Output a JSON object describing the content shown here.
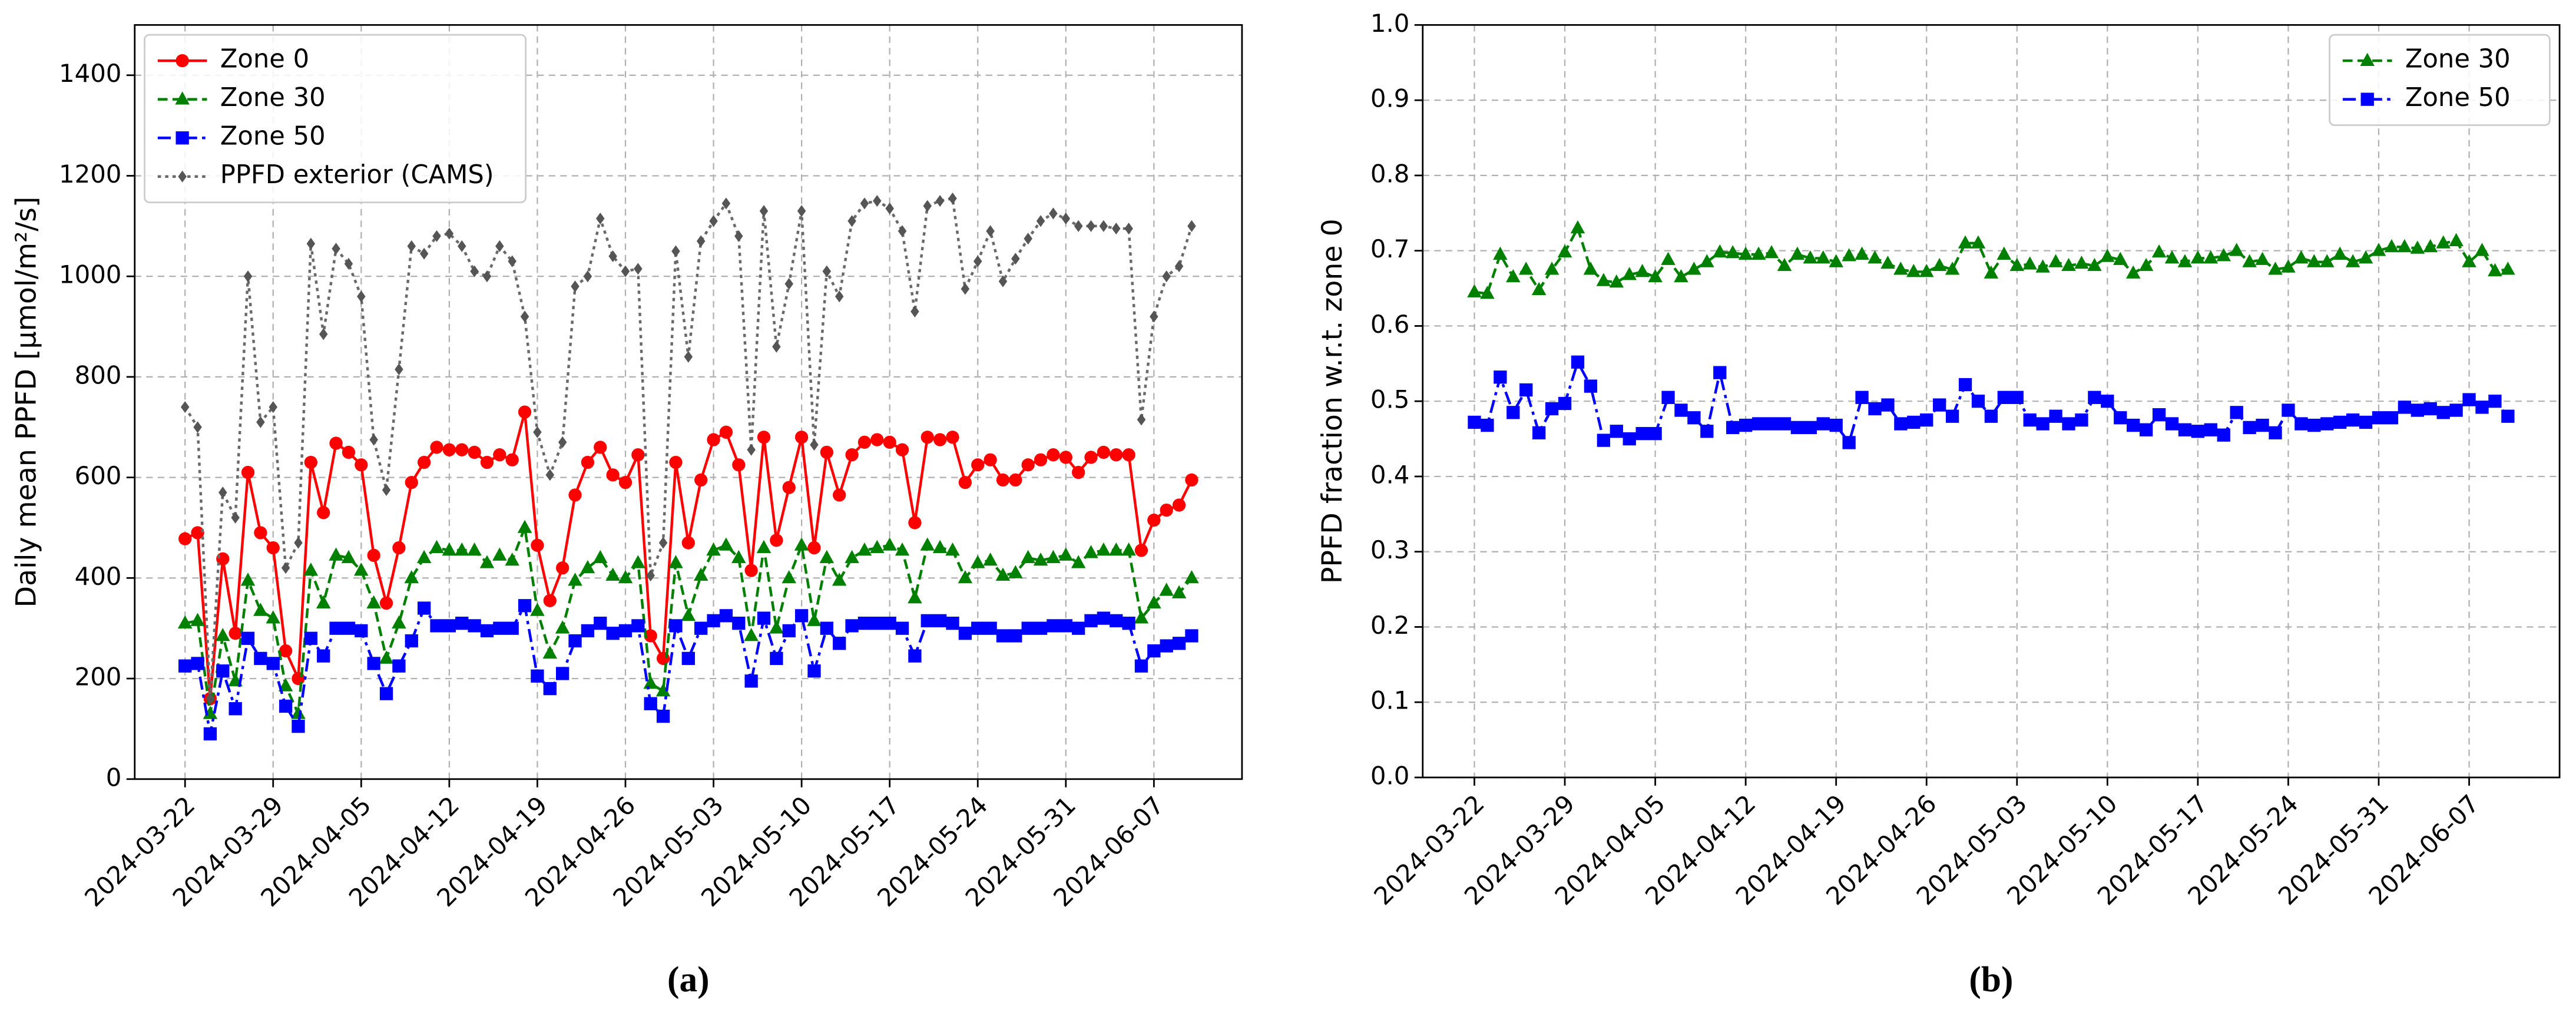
{
  "chart_data": [
    {
      "type": "line",
      "caption": "(a)",
      "ylabel": "Daily mean PPFD [μmol/m²/s]",
      "ylim": [
        0,
        1500
      ],
      "yticks": [
        0,
        200,
        400,
        600,
        800,
        1000,
        1200,
        1400
      ],
      "xticks": [
        "2024-03-22",
        "2024-03-29",
        "2024-04-05",
        "2024-04-12",
        "2024-04-19",
        "2024-04-26",
        "2024-05-03",
        "2024-05-10",
        "2024-05-17",
        "2024-05-24",
        "2024-05-31",
        "2024-06-07"
      ],
      "grid": true,
      "legend": "upper left",
      "x": [
        "2024-03-22",
        "2024-03-23",
        "2024-03-24",
        "2024-03-25",
        "2024-03-26",
        "2024-03-27",
        "2024-03-28",
        "2024-03-29",
        "2024-03-30",
        "2024-03-31",
        "2024-04-01",
        "2024-04-02",
        "2024-04-03",
        "2024-04-04",
        "2024-04-05",
        "2024-04-06",
        "2024-04-07",
        "2024-04-08",
        "2024-04-09",
        "2024-04-10",
        "2024-04-11",
        "2024-04-12",
        "2024-04-13",
        "2024-04-14",
        "2024-04-15",
        "2024-04-16",
        "2024-04-17",
        "2024-04-18",
        "2024-04-19",
        "2024-04-20",
        "2024-04-21",
        "2024-04-22",
        "2024-04-23",
        "2024-04-24",
        "2024-04-25",
        "2024-04-26",
        "2024-04-27",
        "2024-04-28",
        "2024-04-29",
        "2024-04-30",
        "2024-05-01",
        "2024-05-02",
        "2024-05-03",
        "2024-05-04",
        "2024-05-05",
        "2024-05-06",
        "2024-05-07",
        "2024-05-08",
        "2024-05-09",
        "2024-05-10",
        "2024-05-11",
        "2024-05-12",
        "2024-05-13",
        "2024-05-14",
        "2024-05-15",
        "2024-05-16",
        "2024-05-17",
        "2024-05-18",
        "2024-05-19",
        "2024-05-20",
        "2024-05-21",
        "2024-05-22",
        "2024-05-23",
        "2024-05-24",
        "2024-05-25",
        "2024-05-26",
        "2024-05-27",
        "2024-05-28",
        "2024-05-29",
        "2024-05-30",
        "2024-05-31",
        "2024-06-01",
        "2024-06-02",
        "2024-06-03",
        "2024-06-04",
        "2024-06-05",
        "2024-06-06",
        "2024-06-07",
        "2024-06-08",
        "2024-06-09",
        "2024-06-10"
      ],
      "series": [
        {
          "name": "Zone 0",
          "color": "#ff0000",
          "linestyle": "solid",
          "marker": "circle",
          "values": [
            478,
            490,
            160,
            438,
            290,
            610,
            490,
            460,
            255,
            200,
            630,
            530,
            668,
            650,
            625,
            445,
            350,
            460,
            590,
            630,
            660,
            655,
            655,
            650,
            630,
            645,
            635,
            730,
            465,
            355,
            420,
            565,
            630,
            660,
            605,
            590,
            645,
            285,
            240,
            630,
            470,
            595,
            675,
            690,
            625,
            415,
            680,
            475,
            580,
            680,
            460,
            650,
            565,
            645,
            670,
            675,
            670,
            655,
            510,
            680,
            675,
            680,
            590,
            625,
            635,
            595,
            595,
            625,
            635,
            645,
            640,
            610,
            640,
            650,
            645,
            645,
            455,
            515,
            535,
            545,
            595
          ]
        },
        {
          "name": "Zone 30",
          "color": "#008000",
          "linestyle": "dashed",
          "marker": "triangle",
          "values": [
            310,
            315,
            130,
            285,
            195,
            395,
            335,
            320,
            185,
            130,
            415,
            350,
            445,
            440,
            415,
            350,
            240,
            310,
            400,
            440,
            460,
            455,
            455,
            455,
            430,
            445,
            435,
            500,
            335,
            250,
            300,
            395,
            420,
            440,
            405,
            400,
            430,
            190,
            175,
            430,
            325,
            405,
            455,
            465,
            440,
            285,
            460,
            300,
            400,
            465,
            315,
            440,
            395,
            440,
            455,
            460,
            465,
            455,
            360,
            465,
            460,
            455,
            400,
            430,
            435,
            405,
            410,
            440,
            435,
            440,
            445,
            430,
            450,
            455,
            455,
            455,
            320,
            350,
            375,
            370,
            400
          ]
        },
        {
          "name": "Zone 50",
          "color": "#0000ff",
          "linestyle": "dashdot",
          "marker": "square",
          "values": [
            225,
            230,
            90,
            215,
            140,
            280,
            240,
            230,
            145,
            105,
            280,
            245,
            300,
            300,
            295,
            230,
            170,
            225,
            275,
            340,
            305,
            305,
            310,
            305,
            295,
            300,
            300,
            345,
            205,
            180,
            210,
            275,
            295,
            310,
            290,
            295,
            305,
            150,
            125,
            305,
            240,
            300,
            315,
            325,
            310,
            195,
            320,
            240,
            295,
            325,
            215,
            300,
            270,
            305,
            310,
            310,
            310,
            300,
            245,
            315,
            315,
            310,
            290,
            300,
            300,
            285,
            285,
            300,
            300,
            305,
            305,
            300,
            315,
            320,
            315,
            310,
            225,
            255,
            265,
            270,
            285
          ]
        },
        {
          "name": "PPFD exterior (CAMS)",
          "color": "#696969",
          "linestyle": "dotted",
          "marker": "diamond",
          "values": [
            740,
            700,
            160,
            570,
            520,
            1000,
            710,
            740,
            420,
            470,
            1065,
            885,
            1055,
            1025,
            960,
            675,
            575,
            815,
            1060,
            1045,
            1080,
            1085,
            1060,
            1010,
            1000,
            1060,
            1030,
            920,
            690,
            605,
            670,
            980,
            1000,
            1115,
            1040,
            1010,
            1015,
            405,
            470,
            1050,
            840,
            1070,
            1110,
            1145,
            1080,
            655,
            1130,
            860,
            985,
            1130,
            665,
            1010,
            960,
            1110,
            1145,
            1150,
            1135,
            1090,
            930,
            1140,
            1150,
            1155,
            975,
            1030,
            1090,
            990,
            1035,
            1075,
            1110,
            1125,
            1115,
            1100,
            1100,
            1100,
            1095,
            1095,
            715,
            920,
            1000,
            1020,
            1100
          ]
        }
      ]
    },
    {
      "type": "line",
      "caption": "(b)",
      "ylabel": "PPFD fraction w.r.t. zone 0",
      "ylim": [
        0,
        1
      ],
      "yticks": [
        {
          "value": 0,
          "label": "0.0"
        },
        0.1,
        0.2,
        0.3,
        0.4,
        0.5,
        0.6,
        0.7,
        0.8,
        0.9,
        {
          "value": 1,
          "label": "1.0"
        }
      ],
      "xticks": [
        "2024-03-22",
        "2024-03-29",
        "2024-04-05",
        "2024-04-12",
        "2024-04-19",
        "2024-04-26",
        "2024-05-03",
        "2024-05-10",
        "2024-05-17",
        "2024-05-24",
        "2024-05-31",
        "2024-06-07"
      ],
      "grid": true,
      "legend": "upper right",
      "x": [
        "2024-03-22",
        "2024-03-23",
        "2024-03-24",
        "2024-03-25",
        "2024-03-26",
        "2024-03-27",
        "2024-03-28",
        "2024-03-29",
        "2024-03-30",
        "2024-03-31",
        "2024-04-01",
        "2024-04-02",
        "2024-04-03",
        "2024-04-04",
        "2024-04-05",
        "2024-04-06",
        "2024-04-07",
        "2024-04-08",
        "2024-04-09",
        "2024-04-10",
        "2024-04-11",
        "2024-04-12",
        "2024-04-13",
        "2024-04-14",
        "2024-04-15",
        "2024-04-16",
        "2024-04-17",
        "2024-04-18",
        "2024-04-19",
        "2024-04-20",
        "2024-04-21",
        "2024-04-22",
        "2024-04-23",
        "2024-04-24",
        "2024-04-25",
        "2024-04-26",
        "2024-04-27",
        "2024-04-28",
        "2024-04-29",
        "2024-04-30",
        "2024-05-01",
        "2024-05-02",
        "2024-05-03",
        "2024-05-04",
        "2024-05-05",
        "2024-05-06",
        "2024-05-07",
        "2024-05-08",
        "2024-05-09",
        "2024-05-10",
        "2024-05-11",
        "2024-05-12",
        "2024-05-13",
        "2024-05-14",
        "2024-05-15",
        "2024-05-16",
        "2024-05-17",
        "2024-05-18",
        "2024-05-19",
        "2024-05-20",
        "2024-05-21",
        "2024-05-22",
        "2024-05-23",
        "2024-05-24",
        "2024-05-25",
        "2024-05-26",
        "2024-05-27",
        "2024-05-28",
        "2024-05-29",
        "2024-05-30",
        "2024-05-31",
        "2024-06-01",
        "2024-06-02",
        "2024-06-03",
        "2024-06-04",
        "2024-06-05",
        "2024-06-06",
        "2024-06-07",
        "2024-06-08",
        "2024-06-09",
        "2024-06-10"
      ],
      "series": [
        {
          "name": "Zone 30",
          "color": "#008000",
          "linestyle": "dashed",
          "marker": "triangle",
          "values": [
            0.645,
            0.643,
            0.695,
            0.665,
            0.675,
            0.648,
            0.675,
            0.698,
            0.73,
            0.675,
            0.66,
            0.658,
            0.668,
            0.672,
            0.665,
            0.688,
            0.665,
            0.675,
            0.685,
            0.698,
            0.697,
            0.695,
            0.695,
            0.697,
            0.68,
            0.695,
            0.69,
            0.69,
            0.685,
            0.693,
            0.695,
            0.69,
            0.683,
            0.675,
            0.672,
            0.672,
            0.68,
            0.675,
            0.71,
            0.71,
            0.67,
            0.695,
            0.68,
            0.682,
            0.678,
            0.685,
            0.68,
            0.683,
            0.68,
            0.692,
            0.688,
            0.67,
            0.68,
            0.698,
            0.69,
            0.685,
            0.69,
            0.69,
            0.693,
            0.7,
            0.685,
            0.688,
            0.675,
            0.678,
            0.69,
            0.685,
            0.685,
            0.695,
            0.685,
            0.69,
            0.7,
            0.705,
            0.705,
            0.703,
            0.705,
            0.71,
            0.713,
            0.685,
            0.7,
            0.673,
            0.675
          ]
        },
        {
          "name": "Zone 50",
          "color": "#0000ff",
          "linestyle": "dashdot",
          "marker": "square",
          "values": [
            0.472,
            0.468,
            0.532,
            0.485,
            0.515,
            0.458,
            0.49,
            0.497,
            0.552,
            0.52,
            0.448,
            0.46,
            0.45,
            0.457,
            0.457,
            0.505,
            0.488,
            0.478,
            0.46,
            0.538,
            0.465,
            0.468,
            0.47,
            0.47,
            0.47,
            0.465,
            0.465,
            0.47,
            0.468,
            0.445,
            0.505,
            0.49,
            0.495,
            0.47,
            0.472,
            0.475,
            0.495,
            0.48,
            0.522,
            0.5,
            0.48,
            0.505,
            0.505,
            0.475,
            0.47,
            0.48,
            0.47,
            0.475,
            0.505,
            0.5,
            0.478,
            0.468,
            0.462,
            0.482,
            0.47,
            0.462,
            0.46,
            0.462,
            0.455,
            0.485,
            0.465,
            0.468,
            0.458,
            0.488,
            0.47,
            0.468,
            0.47,
            0.472,
            0.475,
            0.472,
            0.478,
            0.478,
            0.492,
            0.488,
            0.49,
            0.485,
            0.488,
            0.502,
            0.492,
            0.5,
            0.48
          ]
        }
      ]
    }
  ]
}
